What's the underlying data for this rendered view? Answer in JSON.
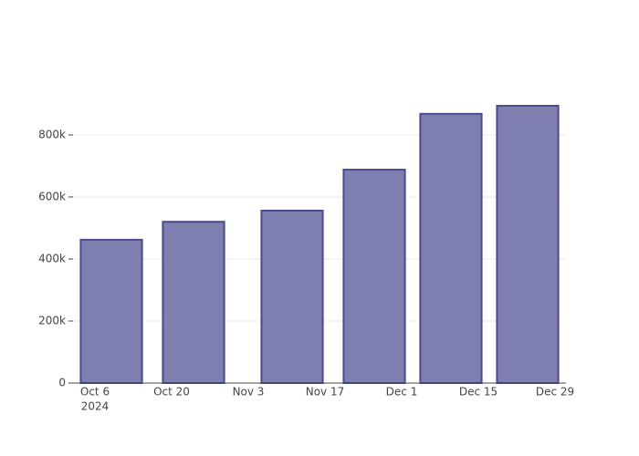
{
  "chart_data": {
    "type": "bar",
    "x": [
      "2024-10-09",
      "2024-10-24",
      "2024-11-11",
      "2024-11-26",
      "2024-12-10",
      "2024-12-24"
    ],
    "values": [
      462000,
      520000,
      556000,
      688000,
      868000,
      894000
    ],
    "color": "#7f7eb0",
    "edge_color": "#4c4a8a",
    "xlim": [
      "2024-10-02",
      "2024-12-31"
    ],
    "xticks": [
      {
        "value": "2024-10-06",
        "label": "Oct 6"
      },
      {
        "value": "2024-10-20",
        "label": "Oct 20"
      },
      {
        "value": "2024-11-03",
        "label": "Nov 3"
      },
      {
        "value": "2024-11-17",
        "label": "Nov 17"
      },
      {
        "value": "2024-12-01",
        "label": "Dec 1"
      },
      {
        "value": "2024-12-15",
        "label": "Dec 15"
      },
      {
        "value": "2024-12-29",
        "label": "Dec 29"
      }
    ],
    "x_year_label": "2024",
    "ylim": [
      0,
      941000
    ],
    "yticks": [
      0,
      {
        "value": 200000,
        "label": "200k"
      },
      {
        "value": 400000,
        "label": "400k"
      },
      {
        "value": 600000,
        "label": "600k"
      },
      {
        "value": 800000,
        "label": "800k"
      }
    ],
    "grid": true
  }
}
